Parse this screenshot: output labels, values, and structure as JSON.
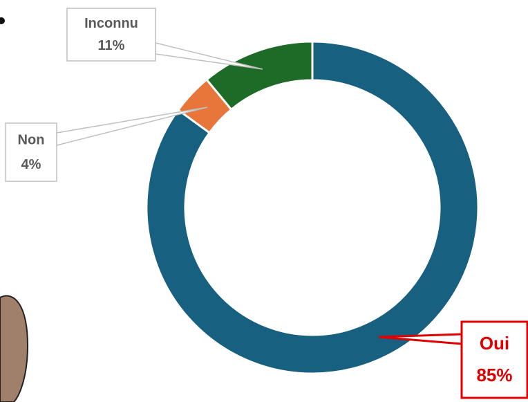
{
  "chart_data": {
    "type": "donut",
    "categories": [
      "Oui",
      "Non",
      "Inconnu"
    ],
    "values": [
      85,
      4,
      11
    ],
    "value_labels": [
      "85%",
      "4%",
      "11%"
    ],
    "colors": [
      "#17607f",
      "#e8763a",
      "#1d6b27"
    ],
    "label_colors": [
      "#e00000",
      "#595959",
      "#595959"
    ]
  }
}
